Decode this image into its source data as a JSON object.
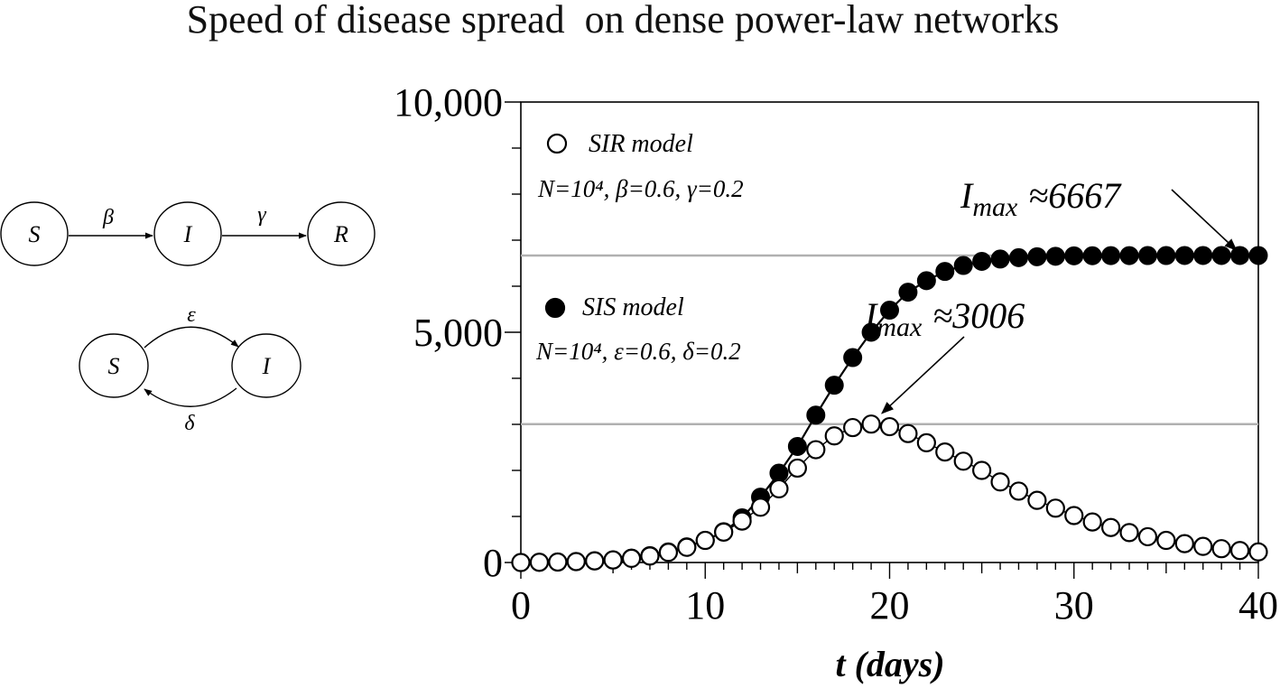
{
  "chart_data": {
    "type": "scatter",
    "title": "Speed of disease spread  on dense power-law networks",
    "xlabel": "t (days)",
    "ylabel": "",
    "xlim": [
      0,
      40
    ],
    "ylim": [
      0,
      10000
    ],
    "x_ticks": [
      {
        "value": 0,
        "label": "0"
      },
      {
        "value": 10,
        "label": "10"
      },
      {
        "value": 20,
        "label": "20"
      },
      {
        "value": 30,
        "label": "30"
      },
      {
        "value": 40,
        "label": "40"
      }
    ],
    "y_ticks": [
      {
        "value": 0,
        "label": "0"
      },
      {
        "value": 5000,
        "label": "5,000"
      },
      {
        "value": 10000,
        "label": "10,000"
      }
    ],
    "grid": false,
    "legend_position": "top-left",
    "x": [
      0,
      1,
      2,
      3,
      4,
      5,
      6,
      7,
      8,
      9,
      10,
      11,
      12,
      13,
      14,
      15,
      16,
      17,
      18,
      19,
      20,
      21,
      22,
      23,
      24,
      25,
      26,
      27,
      28,
      29,
      30,
      31,
      32,
      33,
      34,
      35,
      36,
      37,
      38,
      39,
      40
    ],
    "series": [
      {
        "name": "SIR model",
        "marker": "open-circle",
        "params": "N=10⁴, β=0.6, γ=0.2",
        "values": [
          0,
          5,
          10,
          20,
          35,
          55,
          90,
          140,
          220,
          330,
          480,
          660,
          900,
          1200,
          1600,
          2050,
          2450,
          2750,
          2930,
          3006,
          2950,
          2800,
          2600,
          2400,
          2200,
          2000,
          1750,
          1550,
          1350,
          1180,
          1020,
          880,
          760,
          650,
          560,
          480,
          410,
          350,
          300,
          260,
          230
        ]
      },
      {
        "name": "SIS model",
        "marker": "filled-circle",
        "params": "N=10⁴, ε=0.6, δ=0.2",
        "values": [
          0,
          5,
          12,
          22,
          38,
          60,
          95,
          150,
          230,
          340,
          480,
          670,
          970,
          1420,
          1940,
          2520,
          3200,
          3850,
          4450,
          5000,
          5480,
          5870,
          6120,
          6320,
          6450,
          6540,
          6590,
          6620,
          6640,
          6650,
          6660,
          6662,
          6664,
          6665,
          6666,
          6666,
          6667,
          6667,
          6667,
          6667,
          6667
        ]
      }
    ],
    "reference_lines": [
      {
        "y": 6667,
        "color": "#b0b0b0"
      },
      {
        "y": 3006,
        "color": "#b0b0b0"
      }
    ],
    "annotations": [
      {
        "label": "I",
        "sub": "max",
        "text": "≈6667",
        "x": 39,
        "y": 6667
      },
      {
        "label": "I",
        "sub": "max",
        "text": "≈3006",
        "x": 19,
        "y": 3006
      }
    ]
  },
  "diagrams": {
    "sir": {
      "nodes": [
        "S",
        "I",
        "R"
      ],
      "edge_labels": [
        "β",
        "γ"
      ]
    },
    "sis": {
      "nodes": [
        "S",
        "I"
      ],
      "edge_labels": [
        "ε",
        "δ"
      ]
    }
  }
}
